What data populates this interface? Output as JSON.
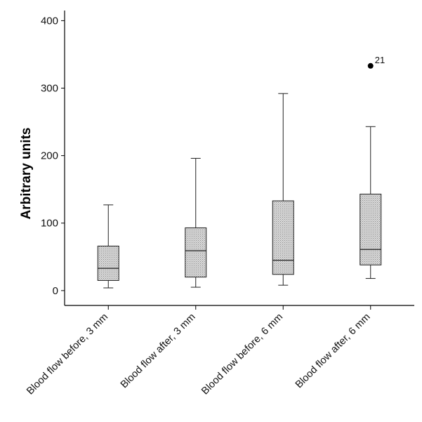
{
  "chart_data": {
    "type": "box",
    "ylabel": "Arbitrary units",
    "xlabel": "",
    "ylim": [
      -22,
      415
    ],
    "yticks": [
      0,
      100,
      200,
      300,
      400
    ],
    "grid": false,
    "box_fill": "#c8c8c8",
    "categories": [
      "Blood flow before, 3 mm",
      "Blood flow after, 3 mm",
      "Blood flow before, 6 mm",
      "Blood flow after, 6 mm"
    ],
    "boxes": [
      {
        "min": 4,
        "q1": 15,
        "median": 33,
        "q3": 66,
        "max": 127,
        "outliers": []
      },
      {
        "min": 5,
        "q1": 20,
        "median": 59,
        "q3": 93,
        "max": 196,
        "outliers": []
      },
      {
        "min": 8,
        "q1": 24,
        "median": 45,
        "q3": 133,
        "max": 292,
        "outliers": []
      },
      {
        "min": 18,
        "q1": 38,
        "median": 61,
        "q3": 143,
        "max": 243,
        "outliers": [
          {
            "value": 333,
            "label": "21"
          }
        ]
      }
    ]
  }
}
